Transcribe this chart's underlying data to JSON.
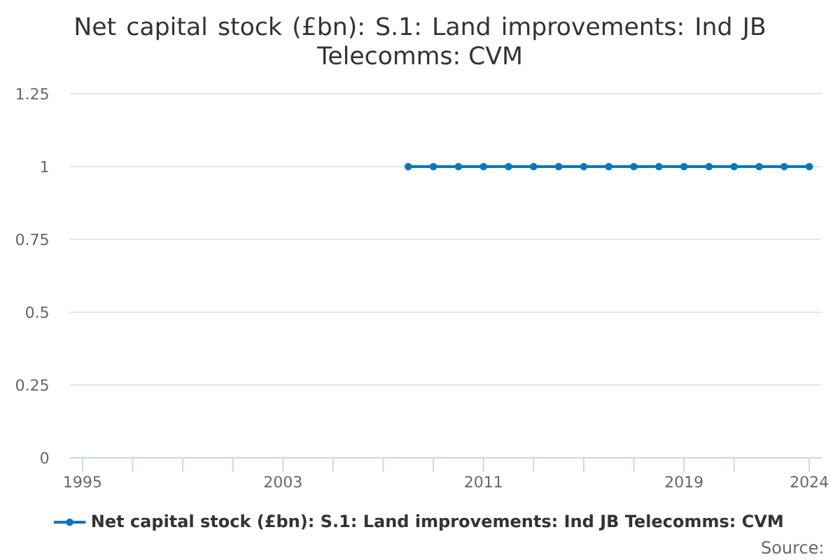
{
  "chart_data": {
    "type": "line",
    "title": "Net capital stock (£bn): S.1: Land improvements: Ind JB Telecomms: CVM",
    "x": [
      2008,
      2009,
      2010,
      2011,
      2012,
      2013,
      2014,
      2015,
      2016,
      2017,
      2018,
      2019,
      2020,
      2021,
      2022,
      2023,
      2024
    ],
    "series": [
      {
        "name": "Net capital stock (£bn): S.1: Land improvements: Ind JB Telecomms: CVM",
        "color": "#0a77bb",
        "values": [
          1,
          1,
          1,
          1,
          1,
          1,
          1,
          1,
          1,
          1,
          1,
          1,
          1,
          1,
          1,
          1,
          1
        ]
      }
    ],
    "xlim": [
      1994.5,
      2024.5
    ],
    "ylim": [
      0,
      1.25
    ],
    "xticks": [
      1995,
      {
        "value": 1997,
        "label": null
      },
      {
        "value": 1999,
        "label": null
      },
      {
        "value": 2001,
        "label": null
      },
      2003,
      {
        "value": 2005,
        "label": null
      },
      {
        "value": 2007,
        "label": null
      },
      {
        "value": 2009,
        "label": null
      },
      2011,
      {
        "value": 2013,
        "label": null
      },
      {
        "value": 2015,
        "label": null
      },
      {
        "value": 2017,
        "label": null
      },
      2019,
      {
        "value": 2021,
        "label": null
      },
      2024
    ],
    "yticks": [
      0,
      0.25,
      0.5,
      0.75,
      1,
      1.25
    ],
    "grid": "y",
    "legend": "bottom",
    "marker": "circle",
    "line_style": "solid",
    "annotations": [
      "Source:"
    ]
  }
}
